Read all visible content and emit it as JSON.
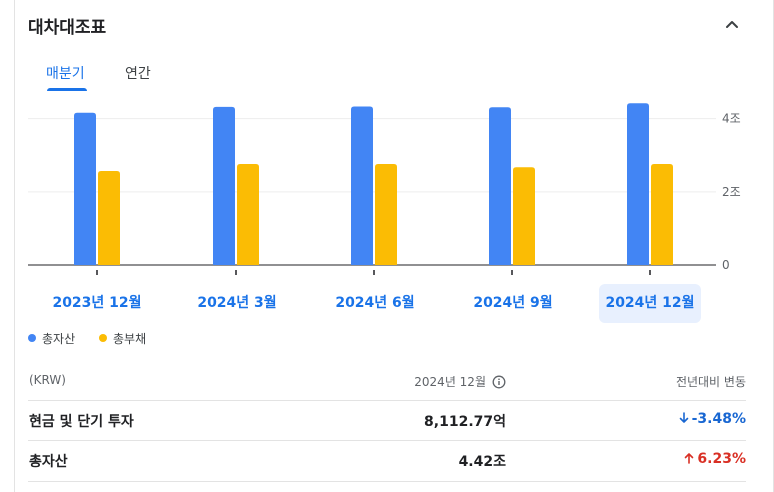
{
  "card": {
    "title": "대차대조표"
  },
  "tabs": [
    {
      "label": "매분기",
      "selected": true
    },
    {
      "label": "연간",
      "selected": false
    }
  ],
  "periods": [
    {
      "label": "2023년 12월",
      "selected": false
    },
    {
      "label": "2024년 3월",
      "selected": false
    },
    {
      "label": "2024년 6월",
      "selected": false
    },
    {
      "label": "2024년 9월",
      "selected": false
    },
    {
      "label": "2024년 12월",
      "selected": true
    }
  ],
  "chart_data": {
    "type": "bar",
    "categories": [
      "2023년 12월",
      "2024년 3월",
      "2024년 6월",
      "2024년 9월",
      "2024년 12월"
    ],
    "series": [
      {
        "name": "총자산",
        "color": "#4285f4",
        "values": [
          4.16,
          4.32,
          4.33,
          4.31,
          4.42
        ]
      },
      {
        "name": "총부채",
        "color": "#fbbc04",
        "values": [
          2.57,
          2.76,
          2.76,
          2.67,
          2.76
        ]
      }
    ],
    "ylim": [
      0,
      4.4
    ],
    "yticks": [
      {
        "value": 0,
        "label": "0"
      },
      {
        "value": 2,
        "label": "2조"
      },
      {
        "value": 4,
        "label": "4조"
      }
    ],
    "grid": true,
    "legend_position": "bottom-left"
  },
  "legend": [
    {
      "label": "총자산",
      "color": "#4285f4"
    },
    {
      "label": "총부채",
      "color": "#fbbc04"
    }
  ],
  "table": {
    "headers": {
      "unit": "(KRW)",
      "period": "2024년 12월",
      "change": "전년대비 변동"
    },
    "rows": [
      {
        "label": "현금 및 단기 투자",
        "value": "8,112.77억",
        "change": "-3.48%",
        "direction": "down"
      },
      {
        "label": "총자산",
        "value": "4.42조",
        "change": "6.23%",
        "direction": "up"
      }
    ]
  }
}
